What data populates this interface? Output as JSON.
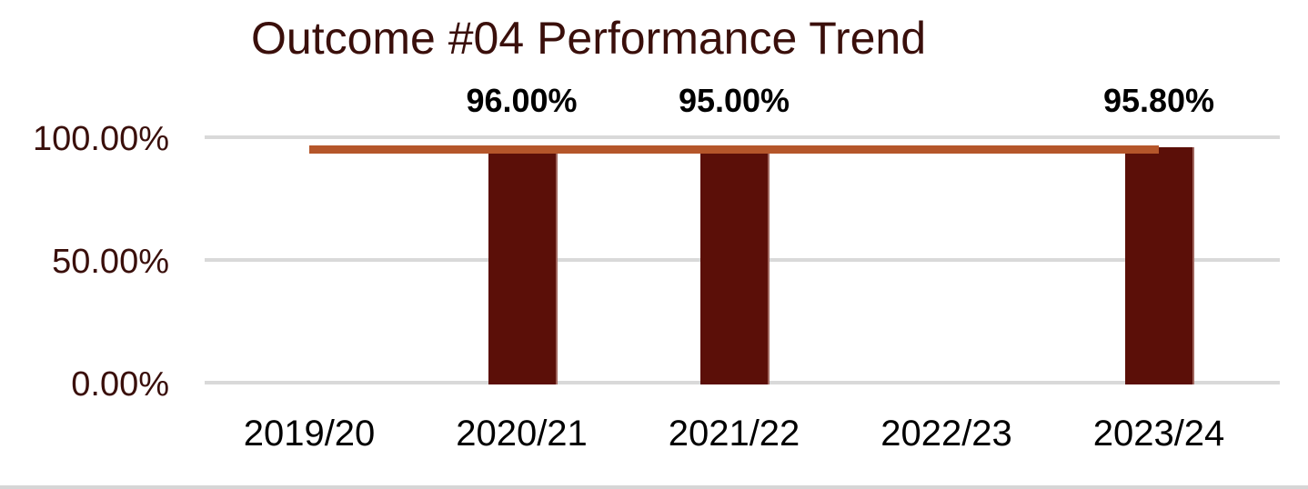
{
  "chart_data": {
    "type": "bar",
    "title": "Outcome #04 Performance Trend",
    "categories": [
      "2019/20",
      "2020/21",
      "2021/22",
      "2022/23",
      "2023/24"
    ],
    "series": [
      {
        "name": "performance-bars",
        "type": "bar",
        "values": [
          null,
          96.0,
          95.0,
          null,
          95.8
        ],
        "color": "#5B0F08"
      },
      {
        "name": "target-line",
        "type": "line",
        "constant_value": 95.0,
        "spans_categories": [
          "2019/20",
          "2023/24"
        ],
        "color": "#B5562A"
      }
    ],
    "data_labels": [
      "",
      "96.00%",
      "95.00%",
      "",
      "95.80%"
    ],
    "y_ticks": [
      {
        "label": "100.00%",
        "value": 100
      },
      {
        "label": "50.00%",
        "value": 50
      },
      {
        "label": "0.00%",
        "value": 0
      }
    ],
    "ylim": [
      0,
      100
    ],
    "grid": true,
    "legend_position": "none",
    "xlabel": "",
    "ylabel": ""
  },
  "colors": {
    "background": "#ffffff",
    "bar_fill": "#5B0F08",
    "target_line": "#B5562A",
    "title_text": "#3A0F0B",
    "y_tick_text": "#3A0F0B",
    "x_tick_text": "#000000",
    "data_label_text": "#000000",
    "gridline": "#D9D9D9",
    "bottom_rule": "#D6D6D6"
  }
}
